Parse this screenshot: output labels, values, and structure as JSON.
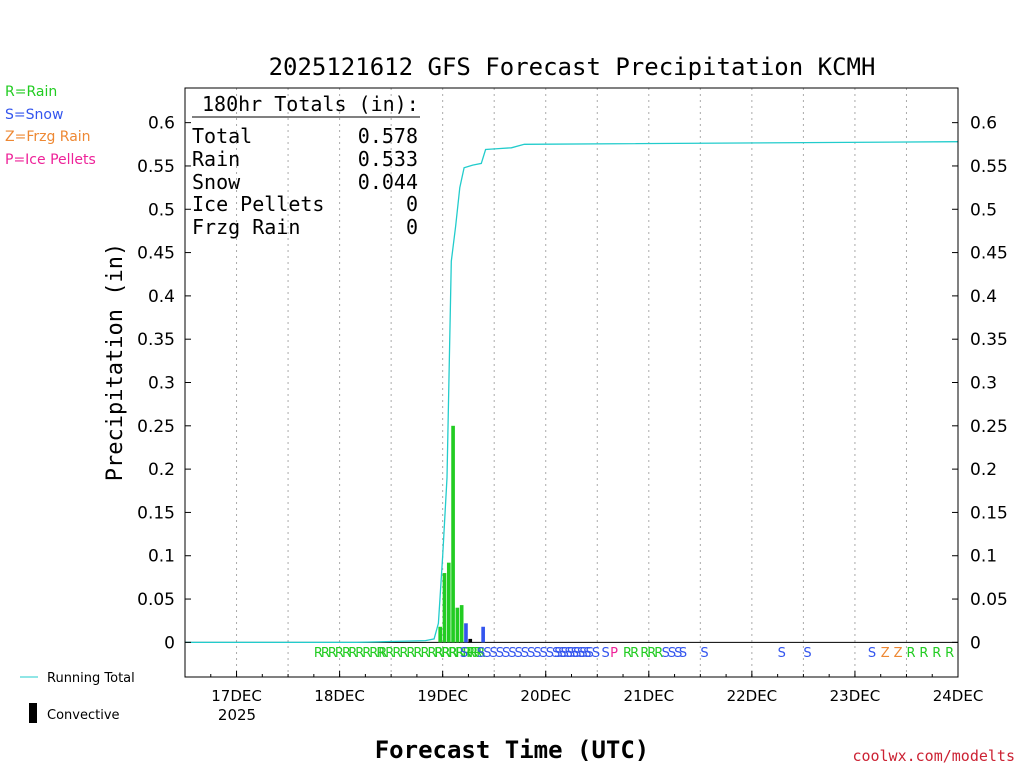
{
  "chart_data": {
    "type": "bar",
    "title": "2025121612 GFS Forecast Precipitation KCMH",
    "xlabel": "Forecast Time (UTC)",
    "ylabel": "Precipitation (in)",
    "ylim": [
      -0.04,
      0.64
    ],
    "y_ticks": [
      "0",
      "0.05",
      "0.1",
      "0.15",
      "0.2",
      "0.25",
      "0.3",
      "0.35",
      "0.4",
      "0.45",
      "0.5",
      "0.55",
      "0.6"
    ],
    "x_ticks": [
      "17DEC",
      "18DEC",
      "19DEC",
      "20DEC",
      "21DEC",
      "22DEC",
      "23DEC",
      "24DEC"
    ],
    "x_year_label": "2025",
    "credit": "coolwx.com/modelts",
    "legend": [
      {
        "label": "R=Rain",
        "color": "#22cc22"
      },
      {
        "label": "S=Snow",
        "color": "#3355ee"
      },
      {
        "label": "Z=Frzg Rain",
        "color": "#ee8833"
      },
      {
        "label": "P=Ice Pellets",
        "color": "#ee2299"
      }
    ],
    "bottom_legend": {
      "running_total": "Running Total",
      "convective": "Convective"
    },
    "totals": {
      "header": "180hr Totals (in):",
      "rows": [
        {
          "label": "Total",
          "value": "0.578"
        },
        {
          "label": "Rain",
          "value": "0.533"
        },
        {
          "label": "Snow",
          "value": "0.044"
        },
        {
          "label": "Ice Pellets",
          "value": "0"
        },
        {
          "label": "Frzg Rain",
          "value": "0"
        }
      ]
    },
    "bars": [
      {
        "h": 59.0,
        "v": 0.018,
        "type": "rain"
      },
      {
        "h": 60.0,
        "v": 0.08,
        "type": "rain"
      },
      {
        "h": 61.0,
        "v": 0.092,
        "type": "rain"
      },
      {
        "h": 62.0,
        "v": 0.25,
        "type": "rain"
      },
      {
        "h": 63.0,
        "v": 0.04,
        "type": "rain"
      },
      {
        "h": 64.0,
        "v": 0.043,
        "type": "rain"
      },
      {
        "h": 65.0,
        "v": 0.022,
        "type": "snow"
      },
      {
        "h": 66.0,
        "v": 0.004,
        "type": "convective"
      },
      {
        "h": 69.0,
        "v": 0.018,
        "type": "snow"
      }
    ],
    "running_total": {
      "h": [
        0,
        40,
        56,
        58,
        59,
        60,
        61,
        62,
        63,
        64,
        65,
        67,
        69,
        70,
        73,
        76,
        79,
        180
      ],
      "v": [
        0,
        0,
        0.002,
        0.004,
        0.022,
        0.1,
        0.19,
        0.44,
        0.48,
        0.525,
        0.548,
        0.551,
        0.553,
        0.569,
        0.57,
        0.571,
        0.575,
        0.578
      ]
    },
    "ptype_markers": [
      {
        "h": 30.0,
        "text": "RRRRR",
        "type": "rain"
      },
      {
        "h": 38.0,
        "text": "RRRRR",
        "type": "rain"
      },
      {
        "h": 45.0,
        "text": "RRRRRRRRRRRRR",
        "type": "rain"
      },
      {
        "h": 58.0,
        "text": "RRRRRRR",
        "type": "rain"
      },
      {
        "h": 64.0,
        "text": "S",
        "type": "snow"
      },
      {
        "h": 65.5,
        "text": "RR",
        "type": "rain"
      },
      {
        "h": 68.0,
        "text": "SSSSSSSSSSSSSSSSSS",
        "type": "snow"
      },
      {
        "h": 86.0,
        "text": "SSSSSSS",
        "type": "snow"
      },
      {
        "h": 97.0,
        "text": "S",
        "type": "snow"
      },
      {
        "h": 99.0,
        "text": "P",
        "type": "pellets"
      },
      {
        "h": 102.0,
        "text": "RR",
        "type": "rain"
      },
      {
        "h": 106.0,
        "text": "RRR",
        "type": "rain"
      },
      {
        "h": 111.0,
        "text": "SSS",
        "type": "snow"
      },
      {
        "h": 115.0,
        "text": "S",
        "type": "snow"
      },
      {
        "h": 120.0,
        "text": "S",
        "type": "snow"
      },
      {
        "h": 138.0,
        "text": "S",
        "type": "snow"
      },
      {
        "h": 144.0,
        "text": "S",
        "type": "snow"
      },
      {
        "h": 159.0,
        "text": "S",
        "type": "snow"
      },
      {
        "h": 162.0,
        "text": "Z",
        "type": "frzg"
      },
      {
        "h": 165.0,
        "text": "Z",
        "type": "frzg"
      },
      {
        "h": 168.0,
        "text": "R",
        "type": "rain"
      },
      {
        "h": 171.0,
        "text": "R",
        "type": "rain"
      },
      {
        "h": 174.0,
        "text": "R",
        "type": "rain"
      },
      {
        "h": 177.0,
        "text": "R",
        "type": "rain"
      }
    ],
    "colors": {
      "rain": "#22cc22",
      "snow": "#3355ee",
      "frzg": "#ee8833",
      "pellets": "#ee2299",
      "convective": "#000000",
      "running_total": "#22cccc",
      "credit": "#cc2233"
    }
  }
}
